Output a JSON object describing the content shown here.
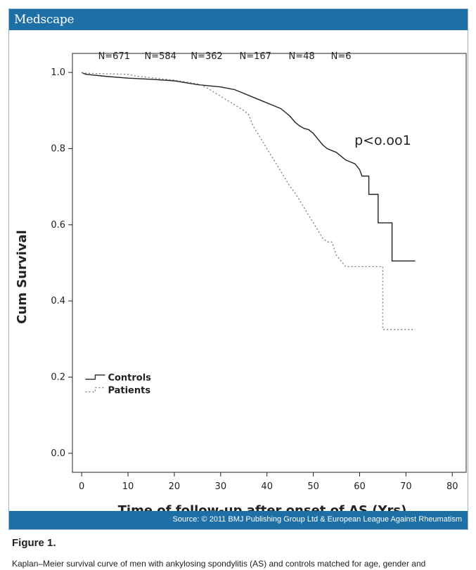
{
  "header": {
    "brand": "Medscape"
  },
  "footer": {
    "source": "Source: © 2011 BMJ Publishing Group Ltd & European League Against Rheumatism"
  },
  "figure": {
    "label": "Figure 1.",
    "caption": "Kaplan–Meier survival curve of men with ankylosing spondylitis (AS) and controls matched for age, gender and"
  },
  "colors": {
    "accent": "#1d6fa6",
    "text": "#222222",
    "controls": "#222222",
    "patients": "#7a7a7a"
  },
  "chart_data": {
    "type": "line",
    "title": "",
    "xlabel": "Time of follow-up after onset of AS (Yrs)",
    "ylabel": "Cum Survival",
    "xlim": [
      -2,
      83
    ],
    "ylim": [
      -0.05,
      1.05
    ],
    "xticks": [
      "0",
      "10",
      "20",
      "30",
      "40",
      "50",
      "60",
      "70",
      "80"
    ],
    "yticks": [
      "0.0",
      "0.2",
      "0.4",
      "0.6",
      "0.8",
      "1.0"
    ],
    "annotation": "p<o.oo1",
    "at_risk": [
      {
        "label": "N=671",
        "x": 7
      },
      {
        "label": "N=584",
        "x": 17
      },
      {
        "label": "N=362",
        "x": 27
      },
      {
        "label": "N=167",
        "x": 37.5
      },
      {
        "label": "N=48",
        "x": 47.5
      },
      {
        "label": "N=6",
        "x": 56
      }
    ],
    "legend": {
      "position": "bottom-left",
      "entries": [
        "Controls",
        "Patients"
      ]
    },
    "series": [
      {
        "name": "Controls",
        "style": "solid",
        "points": [
          [
            0,
            1.0
          ],
          [
            0.5,
            0.997
          ],
          [
            1,
            0.995
          ],
          [
            5,
            0.99
          ],
          [
            10,
            0.985
          ],
          [
            15,
            0.982
          ],
          [
            20,
            0.978
          ],
          [
            25,
            0.968
          ],
          [
            30,
            0.962
          ],
          [
            33,
            0.955
          ],
          [
            35,
            0.945
          ],
          [
            37,
            0.935
          ],
          [
            39,
            0.925
          ],
          [
            41,
            0.915
          ],
          [
            43,
            0.905
          ],
          [
            44,
            0.895
          ],
          [
            45,
            0.885
          ],
          [
            46,
            0.87
          ],
          [
            47,
            0.86
          ],
          [
            48,
            0.853
          ],
          [
            49,
            0.85
          ],
          [
            50,
            0.84
          ],
          [
            51,
            0.825
          ],
          [
            52,
            0.81
          ],
          [
            53,
            0.8
          ],
          [
            54,
            0.795
          ],
          [
            55,
            0.79
          ],
          [
            56,
            0.78
          ],
          [
            57,
            0.77
          ],
          [
            59,
            0.76
          ],
          [
            60,
            0.745
          ],
          [
            60.5,
            0.728
          ],
          [
            62,
            0.728
          ],
          [
            62,
            0.68
          ],
          [
            64,
            0.68
          ],
          [
            64,
            0.605
          ],
          [
            67,
            0.605
          ],
          [
            67,
            0.505
          ],
          [
            72,
            0.505
          ]
        ]
      },
      {
        "name": "Patients",
        "style": "dotted",
        "points": [
          [
            0,
            1.0
          ],
          [
            1,
            0.998
          ],
          [
            10,
            0.995
          ],
          [
            12,
            0.99
          ],
          [
            20,
            0.98
          ],
          [
            25,
            0.97
          ],
          [
            27,
            0.96
          ],
          [
            29,
            0.945
          ],
          [
            31,
            0.93
          ],
          [
            33,
            0.915
          ],
          [
            35,
            0.9
          ],
          [
            36,
            0.89
          ],
          [
            37,
            0.86
          ],
          [
            38,
            0.84
          ],
          [
            39,
            0.82
          ],
          [
            40,
            0.8
          ],
          [
            41,
            0.78
          ],
          [
            42,
            0.76
          ],
          [
            43,
            0.74
          ],
          [
            44,
            0.72
          ],
          [
            45,
            0.7
          ],
          [
            46,
            0.685
          ],
          [
            47,
            0.665
          ],
          [
            48,
            0.645
          ],
          [
            49,
            0.625
          ],
          [
            50,
            0.605
          ],
          [
            51,
            0.585
          ],
          [
            52,
            0.565
          ],
          [
            53,
            0.555
          ],
          [
            54,
            0.555
          ],
          [
            55,
            0.52
          ],
          [
            56,
            0.505
          ],
          [
            57,
            0.49
          ],
          [
            65,
            0.49
          ],
          [
            65,
            0.325
          ],
          [
            72,
            0.325
          ]
        ]
      }
    ]
  }
}
